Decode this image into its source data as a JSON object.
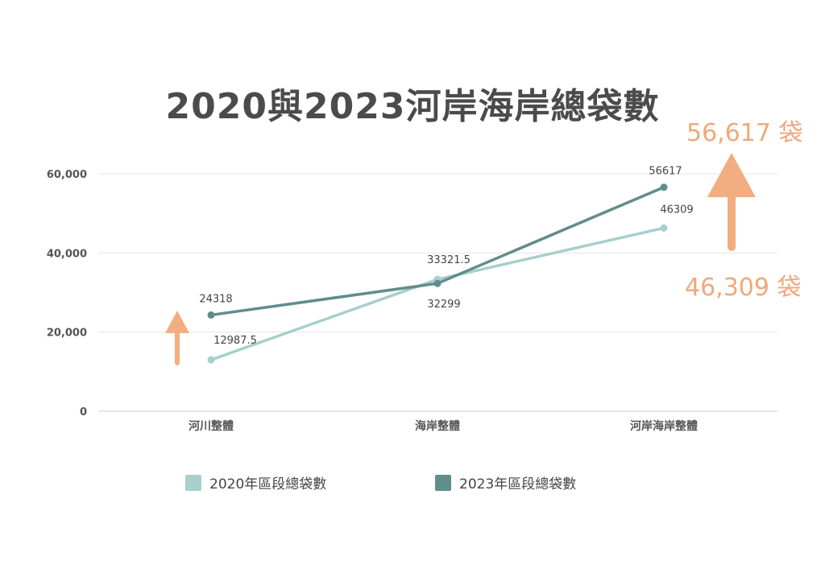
{
  "chart_data": {
    "type": "line",
    "title": "2020與2023河岸海岸總袋數",
    "categories": [
      "河川整體",
      "海岸整體",
      "河岸海岸整體"
    ],
    "series": [
      {
        "name": "2020年區段總袋數",
        "values": [
          12987.5,
          33321.5,
          46309
        ],
        "color": "#a7cfcc"
      },
      {
        "name": "2023年區段總袋數",
        "values": [
          24318,
          32299,
          56617
        ],
        "color": "#5f8e8b"
      }
    ],
    "y_ticks": [
      "0",
      "20,000",
      "40,000",
      "60,000"
    ],
    "ylim": [
      0,
      60000
    ],
    "grid": true,
    "legend": "bottom"
  },
  "annotations": {
    "top": "56,617 袋",
    "bottom": "46,309 袋",
    "arrow_color": "#f2ad80"
  }
}
